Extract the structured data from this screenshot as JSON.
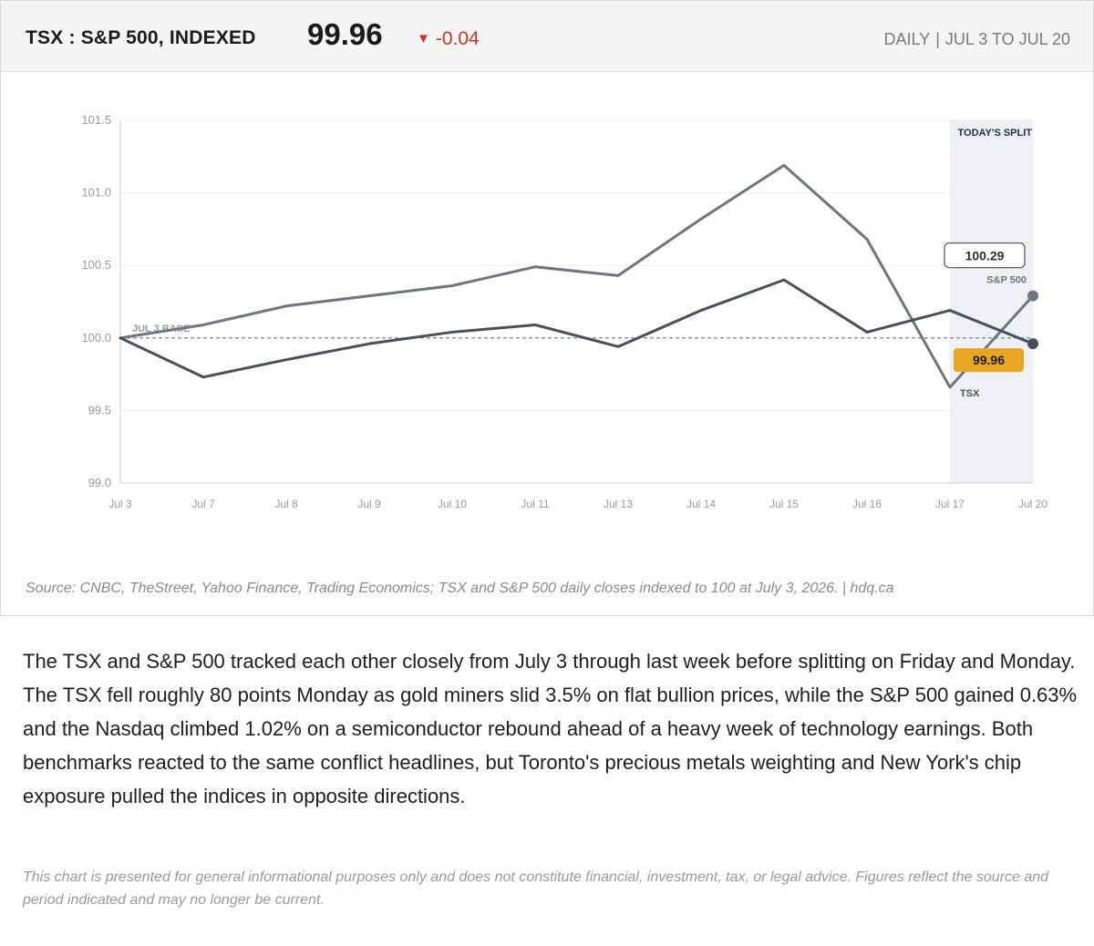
{
  "header": {
    "title": "TSX : S&P 500, INDEXED",
    "value": "99.96",
    "change_arrow": "▼",
    "change": "-0.04",
    "frequency": "DAILY",
    "separator": "|",
    "range": "JUL 3 TO JUL 20"
  },
  "colors": {
    "tsx": "#4a4f5e",
    "sp500": "#6f747e",
    "highlight_band": "#eef0f4",
    "tsx_label_bg": "#e8a524",
    "change_down": "#c0392b"
  },
  "chart_data": {
    "type": "line",
    "categories": [
      "Jul 3",
      "Jul 7",
      "Jul 8",
      "Jul 9",
      "Jul 10",
      "Jul 11",
      "Jul 13",
      "Jul 14",
      "Jul 15",
      "Jul 16",
      "Jul 17",
      "Jul 20"
    ],
    "series": [
      {
        "name": "S&P 500",
        "values": [
          100.0,
          100.09,
          100.22,
          100.29,
          100.36,
          100.49,
          100.43,
          100.82,
          101.19,
          100.68,
          99.66,
          100.29
        ]
      },
      {
        "name": "TSX",
        "values": [
          100.0,
          99.73,
          99.85,
          99.96,
          100.04,
          100.09,
          99.94,
          100.19,
          100.4,
          100.04,
          100.19,
          99.96
        ]
      }
    ],
    "ylim": [
      99.0,
      101.5
    ],
    "yticks": [
      "99.0",
      "99.5",
      "100.0",
      "100.5",
      "101.0",
      "101.5"
    ],
    "baseline": {
      "value": 100.0,
      "label": "JUL 3 BASE"
    },
    "highlight": {
      "from": "Jul 17",
      "to": "Jul 20",
      "label": "TODAY'S SPLIT"
    },
    "end_labels": {
      "sp500_value": "100.29",
      "tsx_value": "99.96"
    },
    "grid": true,
    "legend": "none"
  },
  "footer": {
    "source": "Source: CNBC, TheStreet, Yahoo Finance, Trading Economics; TSX and S&P 500 daily closes indexed to 100 at July 3, 2026.  |  hdq.ca",
    "body": "The TSX and S&P 500 tracked each other closely from July 3 through last week before splitting on Friday and Monday. The TSX fell roughly 80 points Monday as gold miners slid 3.5% on flat bullion prices, while the S&P 500 gained 0.63% and the Nasdaq climbed 1.02% on a semiconductor rebound ahead of a heavy week of technology earnings. Both benchmarks reacted to the same conflict headlines, but Toronto's precious metals weighting and New York's chip exposure pulled the indices in opposite directions.",
    "disclaimer": "This chart is presented for general informational purposes only and does not constitute financial, investment, tax, or legal advice. Figures reflect the source and period indicated and may no longer be current."
  }
}
